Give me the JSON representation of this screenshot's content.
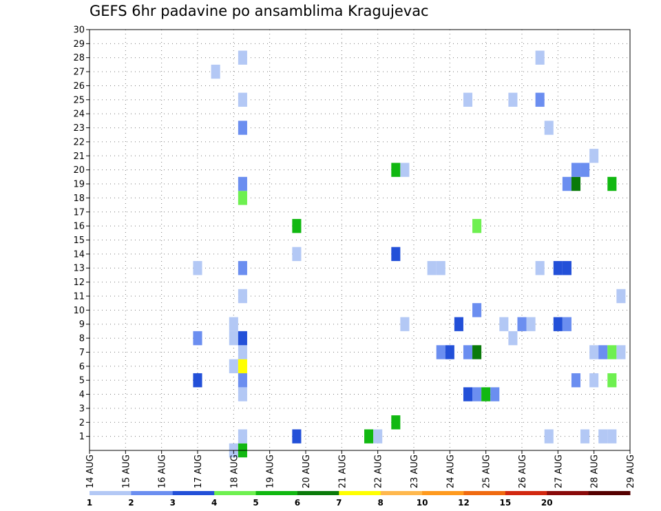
{
  "chart_data": {
    "type": "heatmap",
    "title": "GEFS 6hr padavine po ansamblima Kragujevac",
    "xlabel": "",
    "ylabel": "",
    "x_tick_labels": [
      "14 AUG",
      "15 AUG",
      "16 AUG",
      "17 AUG",
      "18 AUG",
      "19 AUG",
      "20 AUG",
      "21 AUG",
      "22 AUG",
      "23 AUG",
      "24 AUG",
      "25 AUG",
      "26 AUG",
      "27 AUG",
      "28 AUG",
      "29 AUG"
    ],
    "y_tick_labels": [
      "1",
      "2",
      "3",
      "4",
      "5",
      "6",
      "7",
      "8",
      "9",
      "10",
      "11",
      "12",
      "13",
      "14",
      "15",
      "16",
      "17",
      "18",
      "19",
      "20",
      "21",
      "22",
      "23",
      "24",
      "25",
      "26",
      "27",
      "28",
      "29",
      "30"
    ],
    "xlim": [
      0,
      15
    ],
    "ylim": [
      0,
      30
    ],
    "x_unit": "days since 14 AUG 00Z",
    "grid": true,
    "colorbar": {
      "labels": [
        "1",
        "2",
        "3",
        "4",
        "5",
        "6",
        "7",
        "8",
        "10",
        "12",
        "15",
        "20"
      ],
      "colors": [
        "#b3c8f5",
        "#6b8ef0",
        "#2350d8",
        "#6ef050",
        "#11b811",
        "#0a7a0a",
        "#ffff00",
        "#ffb84d",
        "#ff9a1e",
        "#f06a10",
        "#d22810",
        "#8a0a0a",
        "#550000"
      ]
    },
    "cells": [
      {
        "t": 4.0,
        "m": 0,
        "c": 1
      },
      {
        "t": 4.25,
        "m": 0,
        "c": 5
      },
      {
        "t": 4.25,
        "m": 1,
        "c": 1
      },
      {
        "t": 4.25,
        "m": 4,
        "c": 1
      },
      {
        "t": 3.0,
        "m": 5,
        "c": 3
      },
      {
        "t": 4.25,
        "m": 5,
        "c": 2
      },
      {
        "t": 4.0,
        "m": 6,
        "c": 1
      },
      {
        "t": 4.25,
        "m": 6,
        "c": 7
      },
      {
        "t": 4.25,
        "m": 7,
        "c": 1
      },
      {
        "t": 3.0,
        "m": 8,
        "c": 2
      },
      {
        "t": 4.0,
        "m": 8,
        "c": 1
      },
      {
        "t": 4.25,
        "m": 8,
        "c": 3
      },
      {
        "t": 4.0,
        "m": 9,
        "c": 1
      },
      {
        "t": 4.25,
        "m": 11,
        "c": 1
      },
      {
        "t": 3.5,
        "m": 27,
        "c": 1
      },
      {
        "t": 4.25,
        "m": 28,
        "c": 1
      },
      {
        "t": 3.0,
        "m": 13,
        "c": 1
      },
      {
        "t": 4.25,
        "m": 13,
        "c": 2
      },
      {
        "t": 4.25,
        "m": 18,
        "c": 4
      },
      {
        "t": 4.25,
        "m": 19,
        "c": 2
      },
      {
        "t": 4.25,
        "m": 23,
        "c": 2
      },
      {
        "t": 4.25,
        "m": 25,
        "c": 1
      },
      {
        "t": 5.75,
        "m": 1,
        "c": 3
      },
      {
        "t": 5.75,
        "m": 14,
        "c": 1
      },
      {
        "t": 5.75,
        "m": 16,
        "c": 5
      },
      {
        "t": 7.75,
        "m": 1,
        "c": 5
      },
      {
        "t": 8.0,
        "m": 1,
        "c": 1
      },
      {
        "t": 8.5,
        "m": 2,
        "c": 5
      },
      {
        "t": 8.5,
        "m": 14,
        "c": 3
      },
      {
        "t": 8.5,
        "m": 20,
        "c": 5
      },
      {
        "t": 8.75,
        "m": 20,
        "c": 1
      },
      {
        "t": 8.75,
        "m": 9,
        "c": 1
      },
      {
        "t": 9.5,
        "m": 13,
        "c": 1
      },
      {
        "t": 9.75,
        "m": 13,
        "c": 1
      },
      {
        "t": 9.75,
        "m": 7,
        "c": 2
      },
      {
        "t": 10.0,
        "m": 7,
        "c": 3
      },
      {
        "t": 10.25,
        "m": 9,
        "c": 3
      },
      {
        "t": 10.5,
        "m": 4,
        "c": 3
      },
      {
        "t": 10.75,
        "m": 4,
        "c": 2
      },
      {
        "t": 11.0,
        "m": 4,
        "c": 5
      },
      {
        "t": 11.25,
        "m": 4,
        "c": 2
      },
      {
        "t": 10.5,
        "m": 7,
        "c": 2
      },
      {
        "t": 10.75,
        "m": 7,
        "c": 6
      },
      {
        "t": 10.5,
        "m": 25,
        "c": 1
      },
      {
        "t": 10.75,
        "m": 10,
        "c": 2
      },
      {
        "t": 10.75,
        "m": 16,
        "c": 4
      },
      {
        "t": 11.5,
        "m": 9,
        "c": 1
      },
      {
        "t": 11.75,
        "m": 8,
        "c": 1
      },
      {
        "t": 12.0,
        "m": 9,
        "c": 2
      },
      {
        "t": 12.25,
        "m": 9,
        "c": 1
      },
      {
        "t": 11.75,
        "m": 25,
        "c": 1
      },
      {
        "t": 12.5,
        "m": 13,
        "c": 1
      },
      {
        "t": 12.5,
        "m": 25,
        "c": 2
      },
      {
        "t": 12.5,
        "m": 28,
        "c": 1
      },
      {
        "t": 12.75,
        "m": 1,
        "c": 1
      },
      {
        "t": 12.75,
        "m": 23,
        "c": 1
      },
      {
        "t": 13.0,
        "m": 9,
        "c": 3
      },
      {
        "t": 13.25,
        "m": 9,
        "c": 2
      },
      {
        "t": 13.0,
        "m": 13,
        "c": 3
      },
      {
        "t": 13.25,
        "m": 13,
        "c": 3
      },
      {
        "t": 13.25,
        "m": 19,
        "c": 2
      },
      {
        "t": 13.5,
        "m": 19,
        "c": 6
      },
      {
        "t": 13.5,
        "m": 20,
        "c": 2
      },
      {
        "t": 13.75,
        "m": 20,
        "c": 2
      },
      {
        "t": 13.5,
        "m": 5,
        "c": 2
      },
      {
        "t": 13.75,
        "m": 1,
        "c": 1
      },
      {
        "t": 14.0,
        "m": 5,
        "c": 1
      },
      {
        "t": 14.0,
        "m": 7,
        "c": 1
      },
      {
        "t": 14.25,
        "m": 7,
        "c": 2
      },
      {
        "t": 14.5,
        "m": 7,
        "c": 4
      },
      {
        "t": 14.75,
        "m": 7,
        "c": 1
      },
      {
        "t": 14.0,
        "m": 21,
        "c": 1
      },
      {
        "t": 14.25,
        "m": 1,
        "c": 1
      },
      {
        "t": 14.5,
        "m": 1,
        "c": 1
      },
      {
        "t": 14.5,
        "m": 5,
        "c": 4
      },
      {
        "t": 14.5,
        "m": 19,
        "c": 5
      },
      {
        "t": 14.75,
        "m": 11,
        "c": 1
      }
    ]
  }
}
